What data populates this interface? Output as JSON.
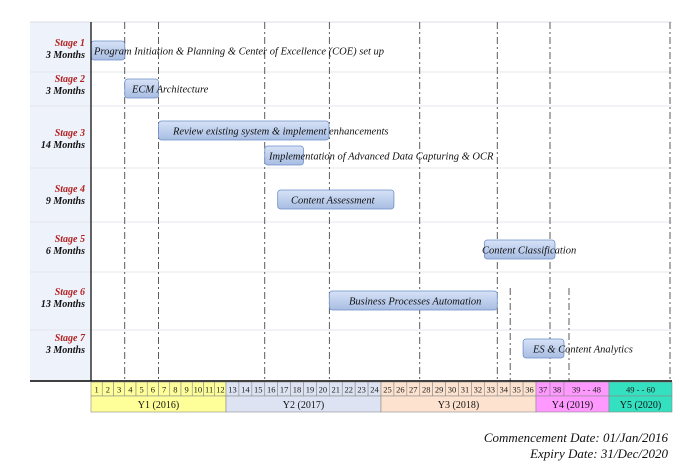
{
  "stages": [
    {
      "name": "Stage 1",
      "duration": "3 Months"
    },
    {
      "name": "Stage 2",
      "duration": "3 Months"
    },
    {
      "name": "Stage 3",
      "duration": "14 Months"
    },
    {
      "name": "Stage 4",
      "duration": "9 Months"
    },
    {
      "name": "Stage 5",
      "duration": "6 Months"
    },
    {
      "name": "Stage 6",
      "duration": "13 Months"
    },
    {
      "name": "Stage 7",
      "duration": "3 Months"
    }
  ],
  "tasks": [
    {
      "label": "Program Initiation & Planning & Center of Excellence (COE) set up",
      "stage": 1,
      "start_month": 1,
      "end_month": 3
    },
    {
      "label": "ECM  Architecture",
      "stage": 2,
      "start_month": 4,
      "end_month": 6
    },
    {
      "label": "Review  existing system & implement enhancements",
      "stage": 3,
      "start_month": 7,
      "end_month": 20
    },
    {
      "label": "Implementation of Advanced Data Capturing & OCR",
      "stage": 3,
      "start_month": 16,
      "end_month": 18
    },
    {
      "label": "Content Assessment",
      "stage": 4,
      "start_month": 17,
      "end_month": 25
    },
    {
      "label": "Content Classification",
      "stage": 5,
      "start_month": 33,
      "end_month": 38
    },
    {
      "label": "Business Processes Automation",
      "stage": 6,
      "start_month": 21,
      "end_month": 33
    },
    {
      "label": "ES & Content Analytics",
      "stage": 7,
      "start_month": 36,
      "end_month": 38
    }
  ],
  "months": [
    "1",
    "2",
    "3",
    "4",
    "5",
    "6",
    "7",
    "8",
    "9",
    "10",
    "11",
    "12",
    "13",
    "14",
    "15",
    "16",
    "17",
    "18",
    "19",
    "20",
    "21",
    "22",
    "23",
    "24",
    "25",
    "26",
    "27",
    "28",
    "29",
    "30",
    "31",
    "32",
    "33",
    "34",
    "35",
    "36",
    "37",
    "38",
    "39 - - 48",
    "49 - - 60"
  ],
  "years": [
    {
      "label": "Y1 (2016)",
      "color": "#ffff99"
    },
    {
      "label": "Y2 (2017)",
      "color": "#dde3f3"
    },
    {
      "label": "Y3 (2018)",
      "color": "#fde3cf"
    },
    {
      "label": "Y4 (2019)",
      "color": "#ff99ff"
    },
    {
      "label": "Y5 (2020)",
      "color": "#33e0c0"
    }
  ],
  "colors": {
    "stage_column_bg": "#eef2fa",
    "bar_fill_top": "#d6e2f7",
    "bar_fill_bottom": "#a8bde3",
    "bar_stroke": "#6f8fc7"
  },
  "footer": {
    "commencement": "Commencement Date:  01/Jan/2016",
    "expiry": "Expiry Date:  31/Dec/2020"
  }
}
